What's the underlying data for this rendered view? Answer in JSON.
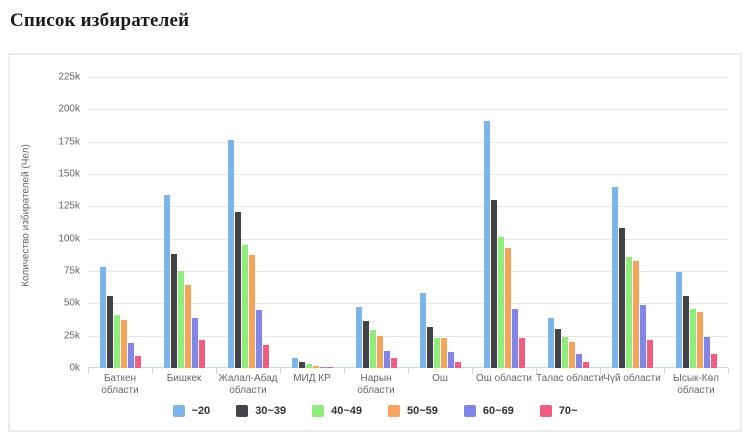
{
  "page": {
    "title": "Список избирателей"
  },
  "colors": {
    "grid": "#e6e6e6",
    "axis": "#ccd6eb",
    "tick_text": "#666666",
    "legend_text": "#333333"
  },
  "chart_data": {
    "type": "bar",
    "title": "Список избирателей",
    "xlabel": "",
    "ylabel": "Количество избирателей (Чел)",
    "grid": true,
    "legend_position": "bottom",
    "ylim": [
      0,
      225000
    ],
    "yticks": [
      0,
      25000,
      50000,
      75000,
      100000,
      125000,
      150000,
      175000,
      200000,
      225000
    ],
    "ytick_labels": [
      "0k",
      "25k",
      "50k",
      "75k",
      "100k",
      "125k",
      "150k",
      "175k",
      "200k",
      "225k"
    ],
    "categories": [
      "Баткен области",
      "Бишкек",
      "Жалал-Абад области",
      "МИД КР",
      "Нарын области",
      "Ош",
      "Ош области",
      "Талас области",
      "Чүй области",
      "Ысык-Көл области"
    ],
    "category_label_lines": [
      [
        "Баткен",
        "области"
      ],
      [
        "Бишкек"
      ],
      [
        "Жалал-Абад",
        "области"
      ],
      [
        "МИД КР"
      ],
      [
        "Нарын",
        "области"
      ],
      [
        "Ош"
      ],
      [
        "Ош области"
      ],
      [
        "Талас области"
      ],
      [
        "Чүй области"
      ],
      [
        "Ысык-Көл",
        "области"
      ]
    ],
    "series": [
      {
        "name": "~20",
        "color": "#7cb5ec",
        "values": [
          78000,
          134000,
          176000,
          8000,
          47000,
          58000,
          191000,
          39000,
          140000,
          74000
        ]
      },
      {
        "name": "30~39",
        "color": "#434348",
        "values": [
          56000,
          88000,
          121000,
          5000,
          36000,
          32000,
          130000,
          30000,
          108000,
          56000
        ]
      },
      {
        "name": "40~49",
        "color": "#90ed7d",
        "values": [
          41000,
          75000,
          95000,
          3000,
          29000,
          23000,
          101000,
          24000,
          86000,
          46000
        ]
      },
      {
        "name": "50~59",
        "color": "#f7a35c",
        "values": [
          37000,
          64000,
          87000,
          1500,
          25000,
          23000,
          93000,
          20000,
          83000,
          43000
        ]
      },
      {
        "name": "60~69",
        "color": "#8085e9",
        "values": [
          19000,
          39000,
          45000,
          700,
          13000,
          12000,
          46000,
          11000,
          49000,
          24000
        ]
      },
      {
        "name": "70~",
        "color": "#f15c80",
        "values": [
          9000,
          22000,
          18000,
          400,
          8000,
          5000,
          23000,
          5000,
          22000,
          11000
        ]
      }
    ]
  }
}
